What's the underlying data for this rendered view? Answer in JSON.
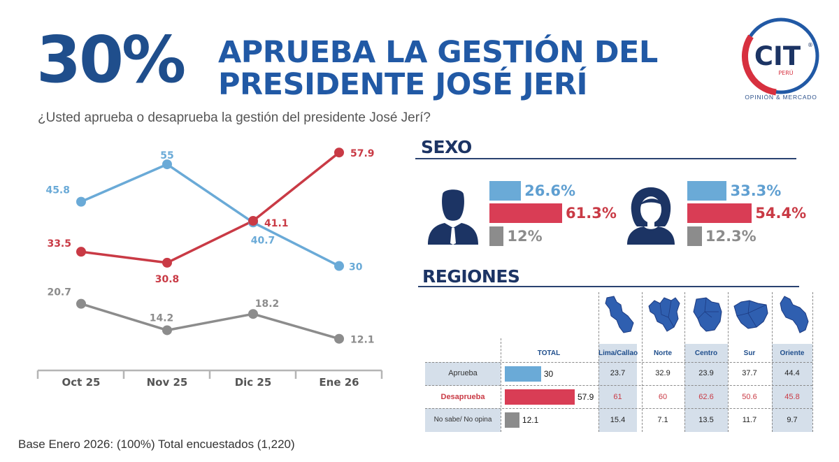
{
  "header": {
    "percent": "30%",
    "title_line1": "APRUEBA LA GESTIÓN DEL",
    "title_line2": "PRESIDENTE JOSÉ JERÍ",
    "question": "¿Usted aprueba o desaprueba la gestión del presidente José Jerí?"
  },
  "logo": {
    "name": "CIT",
    "reg": "®",
    "country": "PERÚ",
    "subtitle": "OPINIÓN & MERCADO"
  },
  "colors": {
    "aprueba": "#6aaad7",
    "desaprueba": "#c93a45",
    "no_sabe": "#8c8c8c",
    "bar_aprueba": "#6aaad7",
    "bar_desaprueba": "#d93d55",
    "bar_no_sabe": "#8c8c8c",
    "navy": "#1c3464",
    "brand_blue": "#2159a5"
  },
  "chart_data": {
    "type": "line",
    "x": [
      "Oct 25",
      "Nov 25",
      "Dic 25",
      "Ene 26"
    ],
    "series": [
      {
        "key": "aprueba",
        "values": [
          45.8,
          55,
          40.7,
          30
        ]
      },
      {
        "key": "desaprueba",
        "values": [
          33.5,
          30.8,
          41.1,
          57.9
        ]
      },
      {
        "key": "no_sabe",
        "values": [
          20.7,
          14.2,
          18.2,
          12.1
        ]
      }
    ],
    "data_labels": {
      "aprueba": [
        "45.8",
        "55",
        "40.7",
        "30"
      ],
      "desaprueba": [
        "33.5",
        "30.8",
        "41.1",
        "57.9"
      ],
      "no_sabe": [
        "20.7",
        "14.2",
        "18.2",
        "12.1"
      ]
    },
    "ylim": [
      5,
      60
    ],
    "grid": false,
    "legend": "none"
  },
  "sexo": {
    "title": "SEXO",
    "hombre": {
      "icon": "man-icon",
      "aprueba": 26.6,
      "desaprueba": 61.3,
      "no_sabe": 12,
      "labels": [
        "26.6%",
        "61.3%",
        "12%"
      ]
    },
    "mujer": {
      "icon": "woman-icon",
      "aprueba": 33.3,
      "desaprueba": 54.4,
      "no_sabe": 12.3,
      "labels": [
        "33.3%",
        "54.4%",
        "12.3%"
      ]
    }
  },
  "regiones": {
    "title": "REGIONES",
    "columns": [
      "TOTAL",
      "Lima/Callao",
      "Norte",
      "Centro",
      "Sur",
      "Oriente"
    ],
    "map_icons": [
      "lima-callao-map-icon",
      "norte-map-icon",
      "centro-map-icon",
      "sur-map-icon",
      "oriente-map-icon"
    ],
    "rows": [
      {
        "label": "Aprueba",
        "total": 30,
        "total_label": "30",
        "values": [
          "23.7",
          "32.9",
          "23.9",
          "37.7",
          "44.4"
        ]
      },
      {
        "label": "Desaprueba",
        "total": 57.9,
        "total_label": "57.9",
        "values": [
          "61",
          "60",
          "62.6",
          "50.6",
          "45.8"
        ]
      },
      {
        "label": "No sabe/ No opina",
        "total": 12.1,
        "total_label": "12.1",
        "values": [
          "15.4",
          "7.1",
          "13.5",
          "11.7",
          "9.7"
        ]
      }
    ]
  },
  "footer": {
    "base": "Base Enero 2026: (100%) Total encuestados (1,220)"
  }
}
